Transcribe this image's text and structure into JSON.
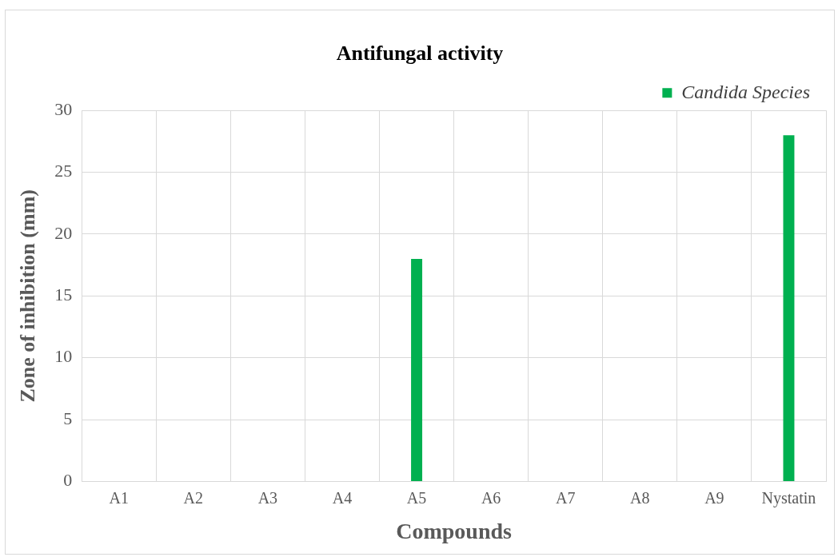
{
  "chart_data": {
    "type": "bar",
    "title": "Antifungal activity",
    "xlabel": "Compounds",
    "ylabel": "Zone of inhibition (mm)",
    "categories": [
      "A1",
      "A2",
      "A3",
      "A4",
      "A5",
      "A6",
      "A7",
      "A8",
      "A9",
      "Nystatin"
    ],
    "series": [
      {
        "name": "Candida Species",
        "color": "#00b050",
        "values": [
          0,
          0,
          0,
          0,
          18,
          0,
          0,
          0,
          0,
          28
        ]
      }
    ],
    "ylim": [
      0,
      30
    ],
    "yticks": [
      0,
      5,
      10,
      15,
      20,
      25,
      30
    ],
    "grid": true,
    "legend": "top right"
  }
}
